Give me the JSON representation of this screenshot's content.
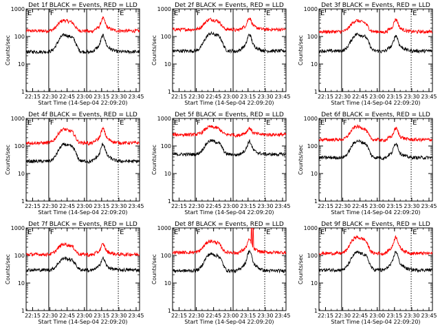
{
  "chart_data": [
    {
      "type": "line",
      "title": "Det 1f BLACK = Events, RED = LLD",
      "xlabel": "Start Time (14-Sep-04 22:09:20)",
      "ylabel": "Counts/sec",
      "yscale": "log",
      "ylim": [
        1,
        1000
      ],
      "xlim": [
        "22:09:20",
        "23:48:00"
      ],
      "x_ticks": [
        "22:15",
        "22:30",
        "22:45",
        "23:00",
        "23:15",
        "23:30",
        "23:45"
      ],
      "y_ticks": [
        "1",
        "10",
        "100",
        "1000"
      ],
      "markers": [
        {
          "label": "E",
          "time": "22:09:20",
          "style": "solid"
        },
        {
          "label": "F",
          "time": "22:29:00",
          "style": "solid"
        },
        {
          "label": "",
          "time": "23:02:00",
          "style": "solid"
        },
        {
          "label": "E",
          "time": "23:29:30",
          "style": "dotted"
        }
      ],
      "series": [
        {
          "color": "#ff0000",
          "base": 160,
          "p1": [
            22.7,
            480
          ],
          "p2": [
            23.27,
            460
          ]
        },
        {
          "color": "#000000",
          "base": 28,
          "p1": [
            22.71,
            150
          ],
          "p2": [
            23.27,
            110
          ]
        }
      ]
    },
    {
      "type": "line",
      "title": "Det 2f BLACK = Events, RED = LLD",
      "xlabel": "Start Time (14-Sep-04 22:09:20)",
      "ylabel": "Counts/sec",
      "yscale": "log",
      "ylim": [
        1,
        1000
      ],
      "xlim": [
        "22:09:20",
        "23:48:00"
      ],
      "x_ticks": [
        "22:15",
        "22:30",
        "22:45",
        "23:00",
        "23:15",
        "23:30",
        "23:45"
      ],
      "y_ticks": [
        "1",
        "10",
        "100",
        "1000"
      ],
      "markers": [
        {
          "label": "E",
          "time": "22:09:20",
          "style": "solid"
        },
        {
          "label": "F",
          "time": "22:29:00",
          "style": "solid"
        },
        {
          "label": "",
          "time": "23:02:00",
          "style": "solid"
        },
        {
          "label": "E",
          "time": "23:29:30",
          "style": "dotted"
        }
      ],
      "series": [
        {
          "color": "#ff0000",
          "base": 180,
          "p1": [
            22.7,
            520
          ],
          "p2": [
            23.27,
            480
          ]
        },
        {
          "color": "#000000",
          "base": 30,
          "p1": [
            22.71,
            170
          ],
          "p2": [
            23.27,
            120
          ]
        }
      ]
    },
    {
      "type": "line",
      "title": "Det 3f BLACK = Events, RED = LLD",
      "xlabel": "Start Time (14-Sep-04 22:09:20)",
      "ylabel": "Counts/sec",
      "yscale": "log",
      "ylim": [
        1,
        1000
      ],
      "xlim": [
        "22:09:20",
        "23:48:00"
      ],
      "x_ticks": [
        "22:15",
        "22:30",
        "22:45",
        "23:00",
        "23:15",
        "23:30",
        "23:45"
      ],
      "y_ticks": [
        "1",
        "10",
        "100",
        "1000"
      ],
      "markers": [
        {
          "label": "E",
          "time": "22:09:20",
          "style": "solid"
        },
        {
          "label": "F",
          "time": "22:29:00",
          "style": "solid"
        },
        {
          "label": "",
          "time": "23:02:00",
          "style": "solid"
        },
        {
          "label": "E",
          "time": "23:29:30",
          "style": "dotted"
        }
      ],
      "series": [
        {
          "color": "#ff0000",
          "base": 150,
          "p1": [
            22.7,
            470
          ],
          "p2": [
            23.27,
            430
          ]
        },
        {
          "color": "#000000",
          "base": 30,
          "p1": [
            22.71,
            160
          ],
          "p2": [
            23.27,
            110
          ]
        }
      ]
    },
    {
      "type": "line",
      "title": "Det 4f BLACK = Events, RED = LLD",
      "xlabel": "Start Time (14-Sep-04 22:09:20)",
      "ylabel": "Counts/sec",
      "yscale": "log",
      "ylim": [
        1,
        1000
      ],
      "xlim": [
        "22:09:20",
        "23:48:00"
      ],
      "x_ticks": [
        "22:15",
        "22:30",
        "22:45",
        "23:00",
        "23:15",
        "23:30",
        "23:45"
      ],
      "y_ticks": [
        "1",
        "10",
        "100",
        "1000"
      ],
      "markers": [
        {
          "label": "E",
          "time": "22:09:20",
          "style": "solid"
        },
        {
          "label": "F",
          "time": "22:29:00",
          "style": "solid"
        },
        {
          "label": "",
          "time": "23:02:00",
          "style": "solid"
        },
        {
          "label": "E",
          "time": "23:29:30",
          "style": "dotted"
        }
      ],
      "series": [
        {
          "color": "#ff0000",
          "base": 130,
          "p1": [
            22.7,
            520
          ],
          "p2": [
            23.27,
            430
          ]
        },
        {
          "color": "#000000",
          "base": 28,
          "p1": [
            22.71,
            150
          ],
          "p2": [
            23.27,
            120
          ]
        }
      ]
    },
    {
      "type": "line",
      "title": "Det 5f BLACK = Events, RED = LLD",
      "xlabel": "Start Time (14-Sep-04 22:09:20)",
      "ylabel": "Counts/sec",
      "yscale": "log",
      "ylim": [
        1,
        1000
      ],
      "xlim": [
        "22:09:20",
        "23:48:00"
      ],
      "x_ticks": [
        "22:15",
        "22:30",
        "22:45",
        "23:00",
        "23:15",
        "23:30",
        "23:45"
      ],
      "y_ticks": [
        "1",
        "10",
        "100",
        "1000"
      ],
      "markers": [
        {
          "label": "E",
          "time": "22:09:20",
          "style": "solid"
        },
        {
          "label": "F",
          "time": "22:29:00",
          "style": "solid"
        },
        {
          "label": "",
          "time": "23:02:00",
          "style": "solid"
        },
        {
          "label": "E",
          "time": "23:29:30",
          "style": "dotted"
        }
      ],
      "series": [
        {
          "color": "#ff0000",
          "base": 260,
          "p1": [
            22.7,
            600
          ],
          "p2": [
            23.27,
            450
          ]
        },
        {
          "color": "#000000",
          "base": 50,
          "p1": [
            22.71,
            200
          ],
          "p2": [
            23.27,
            150
          ]
        }
      ]
    },
    {
      "type": "line",
      "title": "Det 6f BLACK = Events, RED = LLD",
      "xlabel": "Start Time (14-Sep-04 22:09:20)",
      "ylabel": "Counts/sec",
      "yscale": "log",
      "ylim": [
        1,
        1000
      ],
      "xlim": [
        "22:09:20",
        "23:48:00"
      ],
      "x_ticks": [
        "22:15",
        "22:30",
        "22:45",
        "23:00",
        "23:15",
        "23:30",
        "23:45"
      ],
      "y_ticks": [
        "1",
        "10",
        "100",
        "1000"
      ],
      "markers": [
        {
          "label": "E",
          "time": "22:09:20",
          "style": "solid"
        },
        {
          "label": "F",
          "time": "22:29:00",
          "style": "solid"
        },
        {
          "label": "",
          "time": "23:02:00",
          "style": "solid"
        },
        {
          "label": "E",
          "time": "23:29:30",
          "style": "dotted"
        }
      ],
      "series": [
        {
          "color": "#ff0000",
          "base": 170,
          "p1": [
            22.7,
            650
          ],
          "p2": [
            23.27,
            450
          ]
        },
        {
          "color": "#000000",
          "base": 38,
          "p1": [
            22.71,
            200
          ],
          "p2": [
            23.27,
            130
          ]
        }
      ]
    },
    {
      "type": "line",
      "title": "Det 7f BLACK = Events, RED = LLD",
      "xlabel": "Start Time (14-Sep-04 22:09:20)",
      "ylabel": "Counts/sec",
      "yscale": "log",
      "ylim": [
        1,
        1000
      ],
      "xlim": [
        "22:09:20",
        "23:48:00"
      ],
      "x_ticks": [
        "22:15",
        "22:30",
        "22:45",
        "23:00",
        "23:15",
        "23:30",
        "23:45"
      ],
      "y_ticks": [
        "1",
        "10",
        "100",
        "1000"
      ],
      "markers": [
        {
          "label": "E",
          "time": "22:09:20",
          "style": "solid"
        },
        {
          "label": "F",
          "time": "22:29:00",
          "style": "solid"
        },
        {
          "label": "",
          "time": "23:02:00",
          "style": "solid"
        },
        {
          "label": "E",
          "time": "23:29:30",
          "style": "dotted"
        }
      ],
      "series": [
        {
          "color": "#ff0000",
          "base": 110,
          "p1": [
            22.7,
            320
          ],
          "p2": [
            23.27,
            260
          ]
        },
        {
          "color": "#000000",
          "base": 30,
          "p1": [
            22.71,
            100
          ],
          "p2": [
            23.27,
            80
          ]
        }
      ]
    },
    {
      "type": "line",
      "title": "Det 8f BLACK = Events, RED = LLD",
      "xlabel": "Start Time (14-Sep-04 22:09:20)",
      "ylabel": "Counts/sec",
      "yscale": "log",
      "ylim": [
        1,
        1000
      ],
      "xlim": [
        "22:09:20",
        "23:48:00"
      ],
      "x_ticks": [
        "22:15",
        "22:30",
        "22:45",
        "23:00",
        "23:15",
        "23:30",
        "23:45"
      ],
      "y_ticks": [
        "1",
        "10",
        "100",
        "1000"
      ],
      "markers": [
        {
          "label": "E",
          "time": "22:09:20",
          "style": "solid"
        },
        {
          "label": "F",
          "time": "22:29:00",
          "style": "solid"
        },
        {
          "label": "",
          "time": "23:02:00",
          "style": "solid"
        },
        {
          "label": "E",
          "time": "23:29:30",
          "style": "dotted"
        }
      ],
      "series": [
        {
          "color": "#ff0000",
          "base": 130,
          "p1": [
            22.7,
            420
          ],
          "p2": [
            23.27,
            380
          ],
          "spike": [
            23.3,
            1000
          ]
        },
        {
          "color": "#000000",
          "base": 28,
          "p1": [
            22.71,
            150
          ],
          "p2": [
            23.27,
            150
          ]
        }
      ]
    },
    {
      "type": "line",
      "title": "Det 9f BLACK = Events, RED = LLD",
      "xlabel": "Start Time (14-Sep-04 22:09:20)",
      "ylabel": "Counts/sec",
      "yscale": "log",
      "ylim": [
        1,
        1000
      ],
      "xlim": [
        "22:09:20",
        "23:48:00"
      ],
      "x_ticks": [
        "22:15",
        "22:30",
        "22:45",
        "23:00",
        "23:15",
        "23:30",
        "23:45"
      ],
      "y_ticks": [
        "1",
        "10",
        "100",
        "1000"
      ],
      "markers": [
        {
          "label": "E",
          "time": "22:09:20",
          "style": "solid"
        },
        {
          "label": "F",
          "time": "22:29:00",
          "style": "solid"
        },
        {
          "label": "",
          "time": "23:02:00",
          "style": "solid"
        },
        {
          "label": "E",
          "time": "23:29:30",
          "style": "dotted"
        }
      ],
      "series": [
        {
          "color": "#ff0000",
          "base": 120,
          "p1": [
            22.7,
            600
          ],
          "p2": [
            23.27,
            480
          ]
        },
        {
          "color": "#000000",
          "base": 30,
          "p1": [
            22.71,
            170
          ],
          "p2": [
            23.27,
            140
          ]
        }
      ]
    }
  ]
}
